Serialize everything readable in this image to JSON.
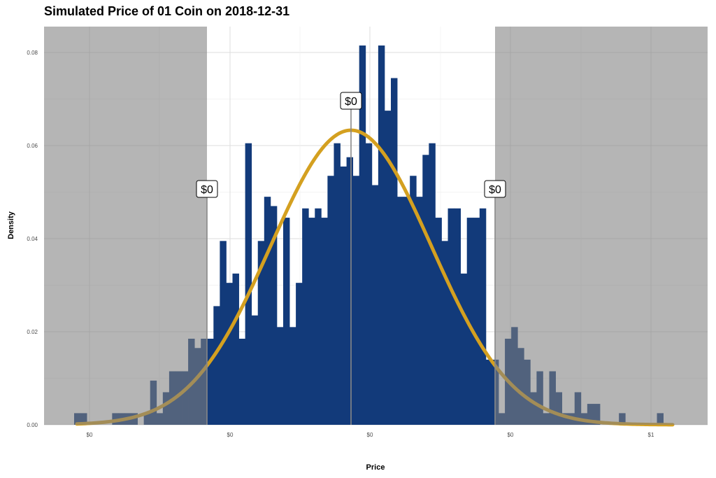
{
  "chart_data": {
    "type": "bar",
    "title": "Simulated Price of 01 Coin on 2018-12-31",
    "xlabel": "Price",
    "ylabel": "Density",
    "ylim": [
      0,
      0.086
    ],
    "y_ticks": [
      0.0,
      0.02,
      0.04,
      0.06,
      0.08
    ],
    "y_tick_labels": [
      "0.00",
      "0.02",
      "0.04",
      "0.06",
      "0.08"
    ],
    "x_tick_labels": [
      "$0",
      "$0",
      "$0",
      "$0",
      "$1"
    ],
    "grid": true,
    "legend": "none",
    "colors": {
      "bars": "#123a7a",
      "curve": "#d4a020",
      "shade": "#7f7f7f",
      "marker": "#888888"
    },
    "histogram_densities": [
      0.0025,
      0.0025,
      0,
      0,
      0,
      0,
      0.0025,
      0.0025,
      0.0025,
      0.0025,
      0,
      0.0025,
      0.0095,
      0.0025,
      0.007,
      0.0115,
      0.0115,
      0.0115,
      0.0185,
      0.0165,
      0.0185,
      0.0185,
      0.0255,
      0.0395,
      0.0305,
      0.0325,
      0.0185,
      0.0605,
      0.0235,
      0.0395,
      0.049,
      0.047,
      0.021,
      0.0445,
      0.021,
      0.0305,
      0.0465,
      0.0445,
      0.0465,
      0.0445,
      0.0535,
      0.0605,
      0.0555,
      0.0575,
      0.0535,
      0.0815,
      0.0605,
      0.0515,
      0.0815,
      0.0675,
      0.0745,
      0.049,
      0.049,
      0.0535,
      0.049,
      0.058,
      0.0605,
      0.0445,
      0.0395,
      0.0465,
      0.0465,
      0.0325,
      0.0445,
      0.0445,
      0.0465,
      0.014,
      0.014,
      0.0025,
      0.0185,
      0.021,
      0.0165,
      0.014,
      0.007,
      0.0115,
      0.0025,
      0.0115,
      0.007,
      0.0025,
      0.0025,
      0.007,
      0.0025,
      0.0045,
      0.0045,
      0,
      0,
      0,
      0.0025,
      0,
      0,
      0,
      0,
      0,
      0.0025
    ],
    "normal_fit_peak": 0.0633,
    "annotations": [
      {
        "label": "$0",
        "role": "lower"
      },
      {
        "label": "$0",
        "role": "mean"
      },
      {
        "label": "$0",
        "role": "upper"
      }
    ]
  }
}
